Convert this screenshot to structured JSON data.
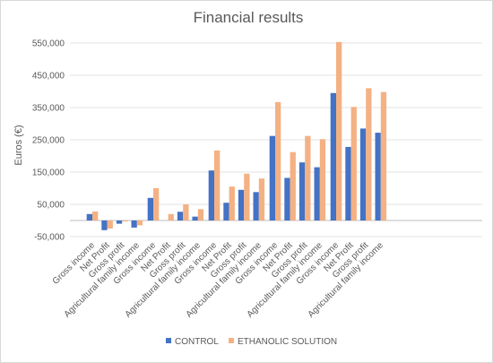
{
  "chart_data": {
    "type": "bar",
    "title": "Financial results",
    "xlabel": "",
    "ylabel": "Euros (€)",
    "ylim": [
      -50000,
      600000
    ],
    "yticks": [
      -50000,
      50000,
      150000,
      250000,
      350000,
      450000,
      550000
    ],
    "ytick_labels": [
      "-50,000",
      "50,000",
      "150,000",
      "250,000",
      "350,000",
      "450,000",
      "550,000"
    ],
    "grid": true,
    "legend_position": "bottom",
    "categories": [
      "Gross income",
      "Net Profit",
      "Gross profit",
      "Agricultural family income",
      "Gross income",
      "Net Profit",
      "Gross profit",
      "Agricultural family income",
      "Gross income",
      "Net Profit",
      "Gross profit",
      "Agricultural family income",
      "Gross income",
      "Net Profit",
      "Gross profit",
      "Agricultural family income",
      "Gross income",
      "Net Profit",
      "Gross profit",
      "Agricultural family income"
    ],
    "series": [
      {
        "name": "CONTROL",
        "color": "#4472c4",
        "values": [
          20000,
          -30000,
          -10000,
          -22000,
          70000,
          0,
          27000,
          12000,
          155000,
          55000,
          95000,
          88000,
          262000,
          132000,
          180000,
          165000,
          395000,
          228000,
          285000,
          272000
        ]
      },
      {
        "name": "ETHANOLIC SOLUTION",
        "color": "#f4b183",
        "values": [
          28000,
          -25000,
          -3000,
          -15000,
          100000,
          20000,
          50000,
          35000,
          217000,
          105000,
          145000,
          130000,
          367000,
          212000,
          262000,
          252000,
          553000,
          352000,
          410000,
          398000
        ]
      }
    ]
  }
}
